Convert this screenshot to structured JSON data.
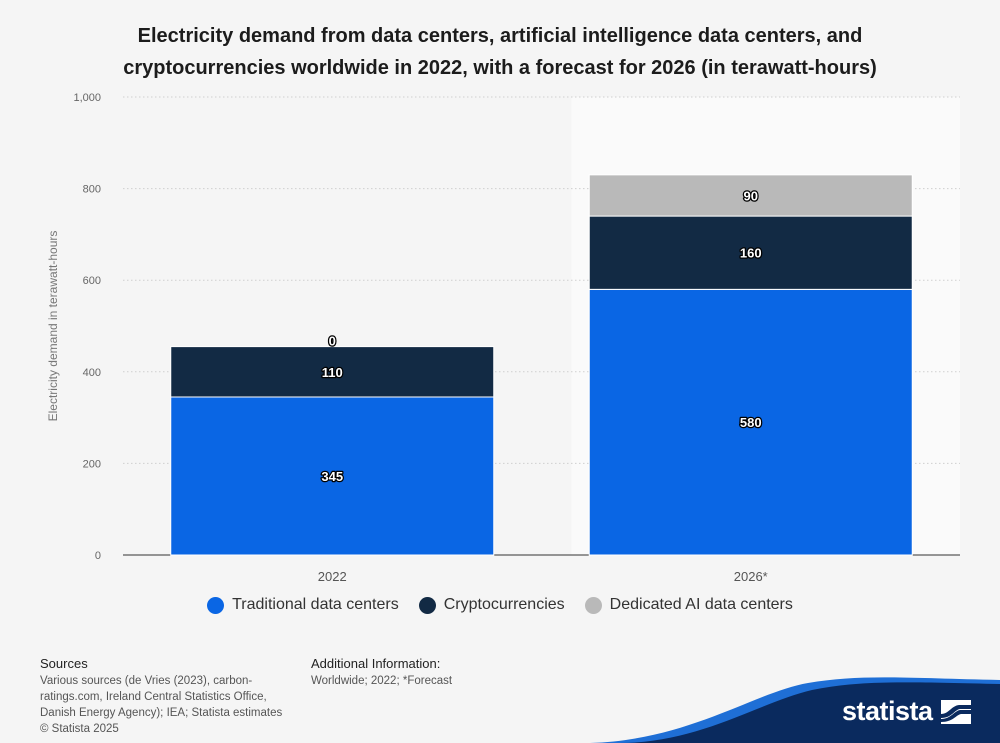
{
  "chart_data": {
    "type": "bar",
    "stacked": true,
    "title": "Electricity demand from data centers, artificial intelligence data centers, and cryptocurrencies worldwide in 2022, with a forecast for 2026 (in terawatt-hours)",
    "title_lines": [
      "Electricity demand from data centers, artificial intelligence data centers, and",
      "cryptocurrencies worldwide in 2022, with a forecast for 2026 (in terawatt-hours)"
    ],
    "categories": [
      "2022",
      "2026*"
    ],
    "series": [
      {
        "name": "Traditional data centers",
        "values": [
          345,
          580
        ],
        "color": "#0a66e4"
      },
      {
        "name": "Cryptocurrencies",
        "values": [
          110,
          160
        ],
        "color": "#122a44"
      },
      {
        "name": "Dedicated AI data centers",
        "values": [
          0,
          90
        ],
        "color": "#b9b9b9"
      }
    ],
    "xlabel": "",
    "ylabel": "Electricity demand in terawatt-hours",
    "ylim": [
      0,
      1000
    ],
    "yticks": [
      0,
      200,
      400,
      600,
      800,
      1000
    ],
    "ytick_labels": [
      "0",
      "200",
      "400",
      "600",
      "800",
      "1,000"
    ],
    "grid": true,
    "highlighted_category": "2026*",
    "legend_position": "bottom"
  },
  "footer": {
    "sources_heading": "Sources",
    "sources_lines": [
      "Various sources (de Vries (2023), carbon-",
      "ratings.com, Ireland Central Statistics Office,",
      "Danish Energy Agency); IEA; Statista estimates"
    ],
    "copyright": "© Statista 2025",
    "additional_heading": "Additional Information:",
    "additional_text": "Worldwide; 2022; *Forecast"
  },
  "brand": {
    "name": "statista",
    "color": "#0a2a5e",
    "accent": "#1f6fd6"
  }
}
